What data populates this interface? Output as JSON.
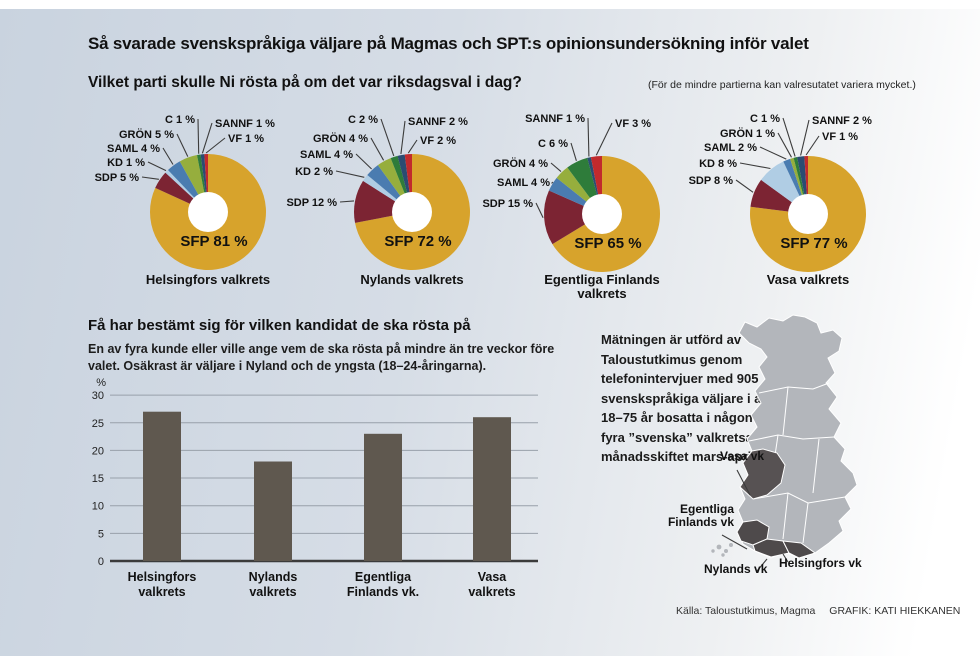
{
  "header": {
    "title": "Så svarade svenskspråkiga väljare på Magmas och SPT:s opinionsundersökning inför valet",
    "question": "Vilket parti skulle Ni rösta på om det var riksdagsval i dag?",
    "note": "(För de mindre partierna kan valresutatet variera mycket.)"
  },
  "colors": {
    "parties": {
      "SFP": "#d7a32c",
      "SDP": "#7c2433",
      "KD": "#b0cde4",
      "SAML": "#4a7cb0",
      "GRÖN": "#96ae3d",
      "C": "#2e7c3a",
      "SANNF": "#2b4c72",
      "VF": "#c12a2d"
    },
    "bar": "#5f584f",
    "map_base": "#b3b6bb",
    "map_highlight": "#575253",
    "map_highlight_dark": "#4e4a4b"
  },
  "chart_data": [
    {
      "type": "pie",
      "title_lines": [
        "Helsingfors valkrets"
      ],
      "center_label": "SFP 81 %",
      "slices": [
        {
          "party": "SFP",
          "value": 81
        },
        {
          "party": "SDP",
          "value": 5
        },
        {
          "party": "KD",
          "value": 1
        },
        {
          "party": "SAML",
          "value": 4
        },
        {
          "party": "GRÖN",
          "value": 5
        },
        {
          "party": "C",
          "value": 1
        },
        {
          "party": "SANNF",
          "value": 1
        },
        {
          "party": "VF",
          "value": 1
        }
      ],
      "left_labels": [
        "C",
        "GRÖN",
        "SAML",
        "KD",
        "SDP"
      ],
      "right_labels": [
        "SANNF",
        "VF"
      ]
    },
    {
      "type": "pie",
      "title_lines": [
        "Nylands valkrets"
      ],
      "center_label": "SFP 72 %",
      "slices": [
        {
          "party": "SFP",
          "value": 72
        },
        {
          "party": "SDP",
          "value": 12
        },
        {
          "party": "KD",
          "value": 2
        },
        {
          "party": "SAML",
          "value": 4
        },
        {
          "party": "GRÖN",
          "value": 4
        },
        {
          "party": "C",
          "value": 2
        },
        {
          "party": "SANNF",
          "value": 2
        },
        {
          "party": "VF",
          "value": 2
        }
      ],
      "left_labels": [
        "C",
        "GRÖN",
        "SAML",
        "KD",
        "SDP"
      ],
      "right_labels": [
        "SANNF",
        "VF"
      ]
    },
    {
      "type": "pie",
      "title_lines": [
        "Egentliga Finlands",
        "valkrets"
      ],
      "center_label": "SFP 65 %",
      "slices": [
        {
          "party": "SFP",
          "value": 65
        },
        {
          "party": "SDP",
          "value": 15
        },
        {
          "party": "SAML",
          "value": 4
        },
        {
          "party": "GRÖN",
          "value": 4
        },
        {
          "party": "C",
          "value": 6
        },
        {
          "party": "SANNF",
          "value": 1
        },
        {
          "party": "VF",
          "value": 3
        }
      ],
      "left_labels": [
        "SANNF",
        "C",
        "GRÖN",
        "SAML",
        "SDP"
      ],
      "right_labels": [
        "VF"
      ]
    },
    {
      "type": "pie",
      "title_lines": [
        "Vasa valkrets"
      ],
      "center_label": "SFP 77 %",
      "slices": [
        {
          "party": "SFP",
          "value": 77
        },
        {
          "party": "SDP",
          "value": 8
        },
        {
          "party": "KD",
          "value": 8
        },
        {
          "party": "SAML",
          "value": 2
        },
        {
          "party": "GRÖN",
          "value": 1
        },
        {
          "party": "C",
          "value": 1
        },
        {
          "party": "SANNF",
          "value": 2
        },
        {
          "party": "VF",
          "value": 1
        }
      ],
      "left_labels": [
        "C",
        "GRÖN",
        "SAML",
        "KD",
        "SDP"
      ],
      "right_labels": [
        "SANNF",
        "VF"
      ]
    },
    {
      "type": "bar",
      "title": "Få har bestämt sig för vilken kandidat de ska rösta på",
      "subtitle": "En av fyra kunde eller ville ange vem de ska rösta på mindre än tre veckor före valet. Osäkrast är väljare i Nyland och de yngsta (18–24-åringarna).",
      "ylabel": "%",
      "ylim": [
        0,
        30
      ],
      "yticks": [
        0,
        5,
        10,
        15,
        20,
        25,
        30
      ],
      "categories": [
        [
          "Helsingfors",
          "valkrets"
        ],
        [
          "Nylands",
          "valkrets"
        ],
        [
          "Egentliga",
          "Finlands vk."
        ],
        [
          "Vasa",
          "valkrets"
        ]
      ],
      "values": [
        27,
        18,
        23,
        26
      ]
    }
  ],
  "methodology": "Mätningen är utförd av Taloustutkimus genom telefonintervjuer med 905 svenskspråkiga väljare i åldern 18–75 år bosatta i någon av de fyra ”svenska” valkretsarna i månads­skiftet mars-april.",
  "map": {
    "vasa": "Vasa vk",
    "egentliga_line1": "Egentliga",
    "egentliga_line2": "Finlands vk",
    "nylands": "Nylands vk",
    "helsingfors": "Helsingfors vk"
  },
  "footer": {
    "source": "Källa: Taloustutkimus, Magma",
    "credit": "GRAFIK: KATI HIEKKANEN"
  }
}
